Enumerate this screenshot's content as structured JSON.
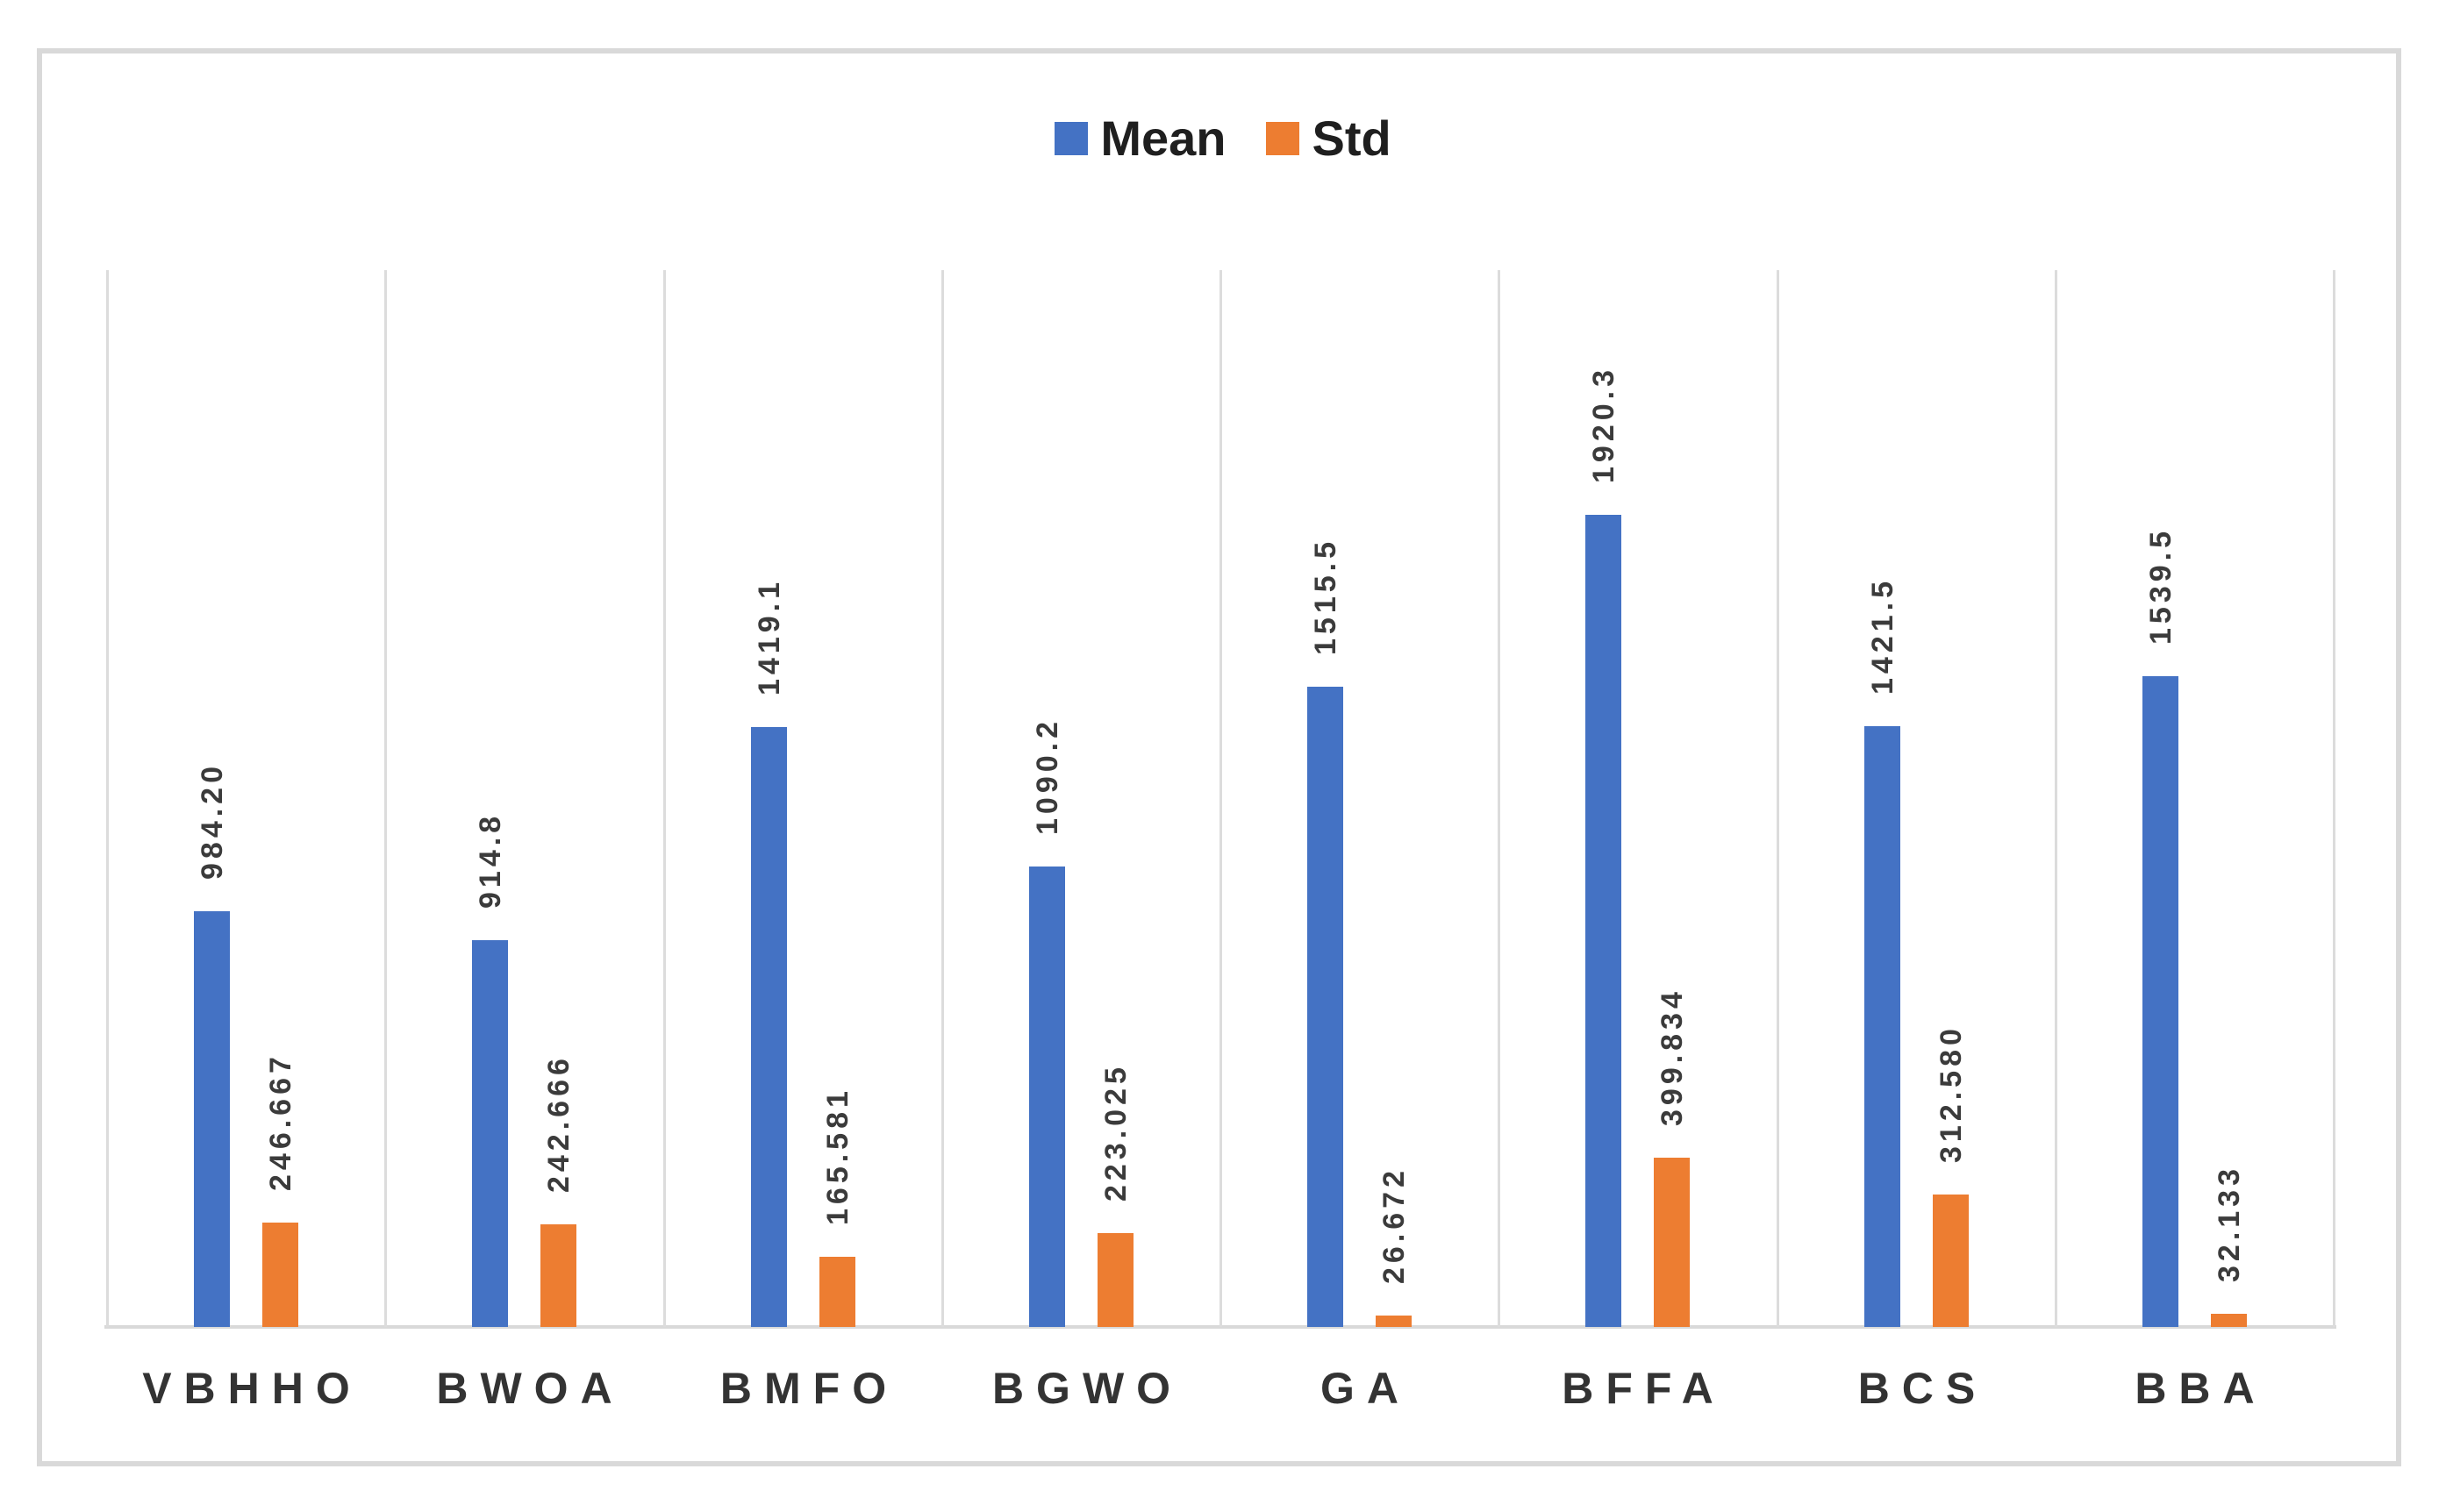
{
  "chart_data": {
    "type": "bar",
    "title": "",
    "xlabel": "",
    "ylabel": "",
    "categories": [
      "VBHHO",
      "BWOA",
      "BMFO",
      "BGWO",
      "GA",
      "BFFA",
      "BCS",
      "BBA"
    ],
    "series": [
      {
        "name": "Mean",
        "color": "#4472C4",
        "values": [
          984.2,
          914.8,
          1419.1,
          1090.2,
          1515.5,
          1920.3,
          1421.5,
          1539.5
        ],
        "labels": [
          "984.20",
          "914.8",
          "1419.1",
          "1090.2",
          "1515.5",
          "1920.3",
          "1421.5",
          "1539.5"
        ]
      },
      {
        "name": "Std",
        "color": "#ED7D31",
        "values": [
          246.667,
          242.666,
          165.581,
          223.025,
          26.672,
          399.834,
          312.58,
          32.133
        ],
        "labels": [
          "246.667",
          "242.666",
          "165.581",
          "223.025",
          "26.672",
          "399.834",
          "312.580",
          "32.133"
        ]
      }
    ],
    "ylim": [
      0,
      2500
    ],
    "grid": "vertical-category-separators",
    "legend_position": "top-center",
    "data_label_rotation": "vertical-bottom-to-top",
    "colors": {
      "gridline": "#DCDCDC",
      "axis_line": "#D9D9D9",
      "chart_border": "#D9D9D9",
      "data_label_text": "#3b3b3b",
      "category_label_text": "#333333",
      "legend_text": "#1f1f1f"
    }
  }
}
